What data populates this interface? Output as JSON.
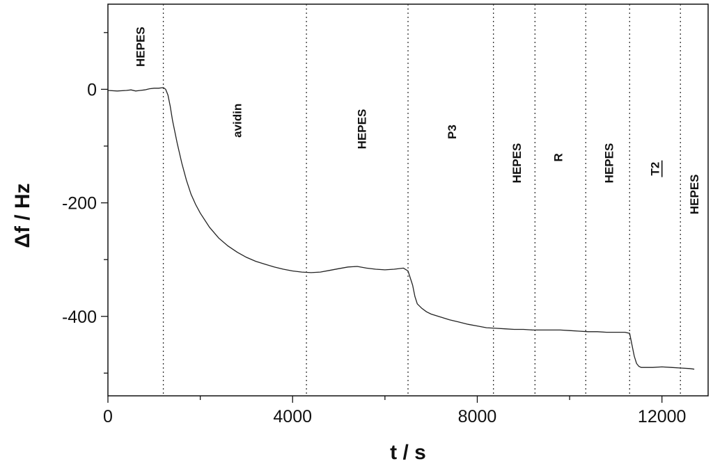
{
  "chart_data": {
    "type": "line",
    "title": "",
    "xlabel": "t / s",
    "ylabel": "Δf / Hz",
    "xlim": [
      0,
      13000
    ],
    "ylim": [
      -540,
      150
    ],
    "x_ticks": [
      0,
      4000,
      8000,
      12000
    ],
    "x_tick_labels": [
      "0",
      "4000",
      "8000",
      "12000"
    ],
    "y_ticks": [
      0,
      -200,
      -400
    ],
    "y_tick_labels": [
      "0",
      "-200",
      "-400"
    ],
    "grid": false,
    "legend": "none",
    "line_color": "#222222",
    "phase_boundaries": [
      1200,
      4300,
      6500,
      8350,
      9250,
      10350,
      11300,
      12400
    ],
    "phases": [
      {
        "label": "HEPES",
        "x": 700,
        "y": 75,
        "underline": false
      },
      {
        "label": "avidin",
        "x": 2800,
        "y": -55,
        "underline": false
      },
      {
        "label": "HEPES",
        "x": 5500,
        "y": -70,
        "underline": false
      },
      {
        "label": "P3",
        "x": 7450,
        "y": -75,
        "underline": false
      },
      {
        "label": "HEPES",
        "x": 8850,
        "y": -130,
        "underline": false
      },
      {
        "label": "R",
        "x": 9750,
        "y": -120,
        "underline": false
      },
      {
        "label": "HEPES",
        "x": 10850,
        "y": -130,
        "underline": false
      },
      {
        "label": "T2",
        "x": 11850,
        "y": -140,
        "underline": true
      },
      {
        "label": "HEPES",
        "x": 12700,
        "y": -185,
        "underline": false
      }
    ],
    "series": [
      {
        "x": [
          0,
          200,
          400,
          500,
          600,
          700,
          800,
          900,
          1000,
          1100,
          1200,
          1250,
          1300,
          1350,
          1400,
          1500,
          1600,
          1700,
          1800,
          1900,
          2000,
          2200,
          2400,
          2600,
          2800,
          3000,
          3200,
          3400,
          3600,
          3800,
          4000,
          4200,
          4400,
          4600,
          4800,
          5000,
          5200,
          5400,
          5600,
          5800,
          6000,
          6200,
          6400,
          6500,
          6600,
          6650,
          6700,
          6800,
          6900,
          7000,
          7200,
          7400,
          7600,
          7800,
          8000,
          8200,
          8400,
          8600,
          8800,
          9000,
          9200,
          9400,
          9600,
          9800,
          10000,
          10200,
          10400,
          10600,
          10800,
          11000,
          11200,
          11300,
          11350,
          11400,
          11450,
          11500,
          11550,
          11600,
          11800,
          12000,
          12200,
          12400,
          12600,
          12700
        ],
        "y": [
          -2,
          -3,
          -2,
          -1,
          -3,
          -2,
          -1,
          1,
          2,
          2,
          3,
          0,
          -10,
          -30,
          -55,
          -95,
          -130,
          -160,
          -185,
          -203,
          -218,
          -243,
          -262,
          -276,
          -287,
          -296,
          -303,
          -308,
          -313,
          -317,
          -320,
          -322,
          -323,
          -322,
          -319,
          -316,
          -313,
          -312,
          -315,
          -317,
          -318,
          -317,
          -315,
          -320,
          -345,
          -365,
          -378,
          -386,
          -392,
          -396,
          -401,
          -406,
          -410,
          -414,
          -417,
          -420,
          -421,
          -422,
          -423,
          -423,
          -424,
          -424,
          -424,
          -424,
          -425,
          -426,
          -427,
          -427,
          -428,
          -428,
          -428,
          -430,
          -450,
          -470,
          -483,
          -488,
          -490,
          -490,
          -490,
          -489,
          -490,
          -491,
          -492,
          -493
        ]
      }
    ]
  }
}
